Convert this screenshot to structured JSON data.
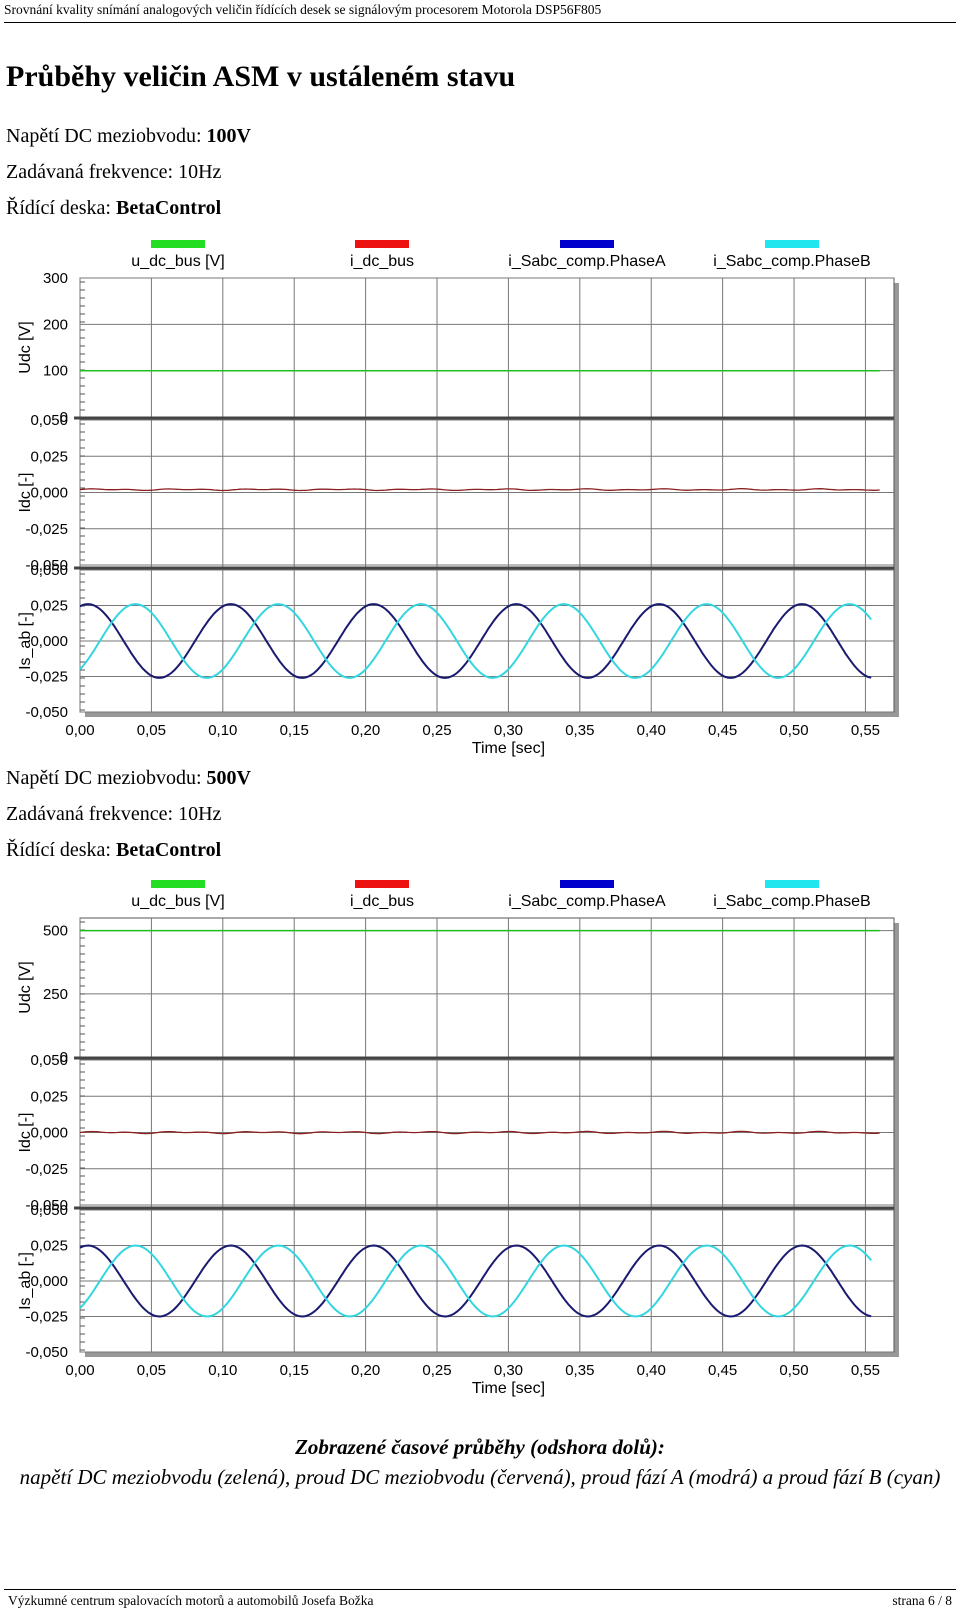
{
  "header": {
    "text": "Srovnání kvality snímání analogových veličin řídících desek se signálovým procesorem Motorola DSP56F805"
  },
  "title": "Průběhy veličin ASM v ustáleném stavu",
  "sections": [
    {
      "voltage_label": "Napětí DC meziobvodu:",
      "voltage_value": "100V",
      "freq_label": "Zadávaná frekvence:",
      "freq_value": "10Hz",
      "board_label": "Řídící deska:",
      "board_value": "BetaControl"
    },
    {
      "voltage_label": "Napětí DC meziobvodu:",
      "voltage_value": "500V",
      "freq_label": "Zadávaná frekvence:",
      "freq_value": "10Hz",
      "board_label": "Řídící deska:",
      "board_value": "BetaControl"
    }
  ],
  "caption": {
    "line1": "Zobrazené časové průběhy (odshora dolů):",
    "line2": "napětí DC meziobvodu (zelená), proud DC meziobvodu (červená), proud fází A (modrá) a proud fází B (cyan)"
  },
  "footer": {
    "left": "Výzkumné centrum spalovacích motorů a automobilů Josefa Božka",
    "right": "strana 6 / 8"
  },
  "colors": {
    "udc": "#1fbf1f",
    "idc": "#8b2020",
    "phaseA": "#1a1a70",
    "phaseB": "#33d6e0",
    "legend_udc": "#22dd22",
    "legend_idc": "#ee1111",
    "legend_phaseA": "#0000cc",
    "legend_phaseB": "#22e6ee",
    "grid": "#777777",
    "shadow": "#999999"
  },
  "chart_data": [
    {
      "type": "line",
      "legend": [
        "u_dc_bus [V]",
        "i_dc_bus",
        "i_Sabc_comp.PhaseA",
        "i_Sabc_comp.PhaseB"
      ],
      "xlabel": "Time [sec]",
      "xlim": [
        0,
        0.57
      ],
      "xticks": [
        "0,00",
        "0,05",
        "0,10",
        "0,15",
        "0,20",
        "0,25",
        "0,30",
        "0,35",
        "0,40",
        "0,45",
        "0,50",
        "0,55"
      ],
      "panels": [
        {
          "ylabel": "Udc [V]",
          "ylim": [
            0,
            300
          ],
          "yticks": [
            "300",
            "200",
            "100",
            "0"
          ],
          "series": [
            {
              "name": "u_dc_bus [V]",
              "constant": 100
            }
          ]
        },
        {
          "ylabel": "Idc [-]",
          "ylim": [
            -0.05,
            0.05
          ],
          "yticks": [
            "0,050",
            "0,025",
            "0,000",
            "-0,025",
            "-0,050"
          ],
          "series": [
            {
              "name": "i_dc_bus",
              "constant": 0.002,
              "ripple": 0.0006
            }
          ]
        },
        {
          "ylabel": "Is_ab [-]",
          "ylim": [
            -0.05,
            0.05
          ],
          "yticks": [
            "0,050",
            "0,025",
            "0,000",
            "-0,025",
            "-0,050"
          ],
          "series": [
            {
              "name": "i_Sabc_comp.PhaseA",
              "amplitude": 0.026,
              "frequency_hz": 10,
              "phase_deg": 0,
              "x_end": 0.555
            },
            {
              "name": "i_Sabc_comp.PhaseB",
              "amplitude": 0.026,
              "frequency_hz": 10,
              "phase_deg": -120,
              "x_end": 0.555
            }
          ]
        }
      ]
    },
    {
      "type": "line",
      "legend": [
        "u_dc_bus [V]",
        "i_dc_bus",
        "i_Sabc_comp.PhaseA",
        "i_Sabc_comp.PhaseB"
      ],
      "xlabel": "Time [sec]",
      "xlim": [
        0,
        0.57
      ],
      "xticks": [
        "0,00",
        "0,05",
        "0,10",
        "0,15",
        "0,20",
        "0,25",
        "0,30",
        "0,35",
        "0,40",
        "0,45",
        "0,50",
        "0,55"
      ],
      "panels": [
        {
          "ylabel": "Udc [V]",
          "ylim": [
            0,
            550
          ],
          "yticks": [
            "500",
            "250",
            "0"
          ],
          "series": [
            {
              "name": "u_dc_bus [V]",
              "constant": 500
            }
          ]
        },
        {
          "ylabel": "Idc [-]",
          "ylim": [
            -0.05,
            0.05
          ],
          "yticks": [
            "0,050",
            "0,025",
            "0,000",
            "-0,025",
            "-0,050"
          ],
          "series": [
            {
              "name": "i_dc_bus",
              "constant": 0.0,
              "ripple": 0.0008
            }
          ]
        },
        {
          "ylabel": "Is_ab [-]",
          "ylim": [
            -0.05,
            0.05
          ],
          "yticks": [
            "0,050",
            "0,025",
            "0,000",
            "-0,025",
            "-0,050"
          ],
          "series": [
            {
              "name": "i_Sabc_comp.PhaseA",
              "amplitude": 0.025,
              "frequency_hz": 10,
              "phase_deg": 0,
              "x_end": 0.555
            },
            {
              "name": "i_Sabc_comp.PhaseB",
              "amplitude": 0.025,
              "frequency_hz": 10,
              "phase_deg": -120,
              "x_end": 0.555
            }
          ]
        }
      ]
    }
  ]
}
